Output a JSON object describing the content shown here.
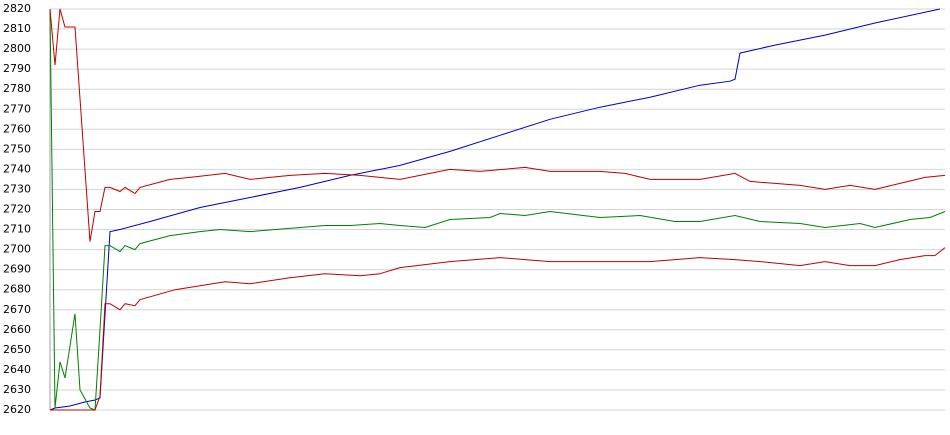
{
  "chart_data": {
    "type": "line",
    "grid": true,
    "xlim": [
      0,
      179
    ],
    "ylim": [
      2620,
      2820
    ],
    "yticks": [
      2620,
      2630,
      2640,
      2650,
      2660,
      2670,
      2680,
      2690,
      2700,
      2710,
      2720,
      2730,
      2740,
      2750,
      2760,
      2770,
      2780,
      2790,
      2800,
      2810,
      2820
    ],
    "series": [
      {
        "color": "#0000c0",
        "x": [
          0,
          1,
          4,
          7,
          9,
          10,
          12,
          14,
          20,
          30,
          40,
          50,
          60,
          66,
          70,
          80,
          90,
          100,
          110,
          120,
          130,
          136,
          137,
          138,
          145,
          155,
          165,
          178
        ],
        "values": [
          2620,
          2621,
          2622,
          2624,
          2625,
          2626,
          2709,
          2710,
          2714,
          2721,
          2726,
          2731,
          2737,
          2740,
          2742,
          2749,
          2757,
          2765,
          2771,
          2776,
          2782,
          2784,
          2785,
          2798,
          2802,
          2807,
          2813,
          2820
        ]
      },
      {
        "color": "#008000",
        "x": [
          0,
          1,
          2,
          3,
          5,
          6,
          8,
          9,
          10,
          11,
          12,
          14,
          15,
          17,
          18,
          24,
          30,
          34,
          40,
          55,
          60,
          66,
          70,
          75,
          80,
          88,
          90,
          95,
          100,
          110,
          118,
          125,
          130,
          137,
          142,
          150,
          155,
          162,
          165,
          172,
          176,
          179
        ],
        "values": [
          2820,
          2621,
          2644,
          2636,
          2668,
          2630,
          2621,
          2620,
          2660,
          2702,
          2702,
          2699,
          2702,
          2700,
          2703,
          2707,
          2709,
          2710,
          2709,
          2712,
          2712,
          2713,
          2712,
          2711,
          2715,
          2716,
          2718,
          2717,
          2719,
          2716,
          2717,
          2714,
          2714,
          2717,
          2714,
          2713,
          2711,
          2713,
          2711,
          2715,
          2716,
          2719
        ]
      },
      {
        "color": "#c00000",
        "x": [
          0,
          1,
          2,
          3,
          5,
          8,
          9,
          10,
          11,
          12,
          14,
          15,
          17,
          18,
          24,
          28,
          35,
          40,
          48,
          55,
          62,
          66,
          70,
          80,
          86,
          95,
          100,
          110,
          115,
          120,
          130,
          137,
          140,
          145,
          150,
          155,
          160,
          165,
          170,
          175,
          179
        ],
        "values": [
          2820,
          2792,
          2820,
          2811,
          2811,
          2704,
          2719,
          2719,
          2731,
          2731,
          2729,
          2731,
          2728,
          2731,
          2735,
          2736,
          2738,
          2735,
          2737,
          2738,
          2737,
          2736,
          2735,
          2740,
          2739,
          2741,
          2739,
          2739,
          2738,
          2735,
          2735,
          2738,
          2734,
          2733,
          2732,
          2730,
          2732,
          2730,
          2733,
          2736,
          2737
        ]
      },
      {
        "color": "#c00000",
        "x": [
          0,
          9,
          10,
          11,
          12,
          14,
          15,
          17,
          18,
          25,
          30,
          35,
          40,
          48,
          55,
          62,
          66,
          70,
          80,
          90,
          95,
          100,
          110,
          120,
          130,
          137,
          142,
          150,
          155,
          160,
          165,
          170,
          175,
          177,
          179
        ],
        "values": [
          2620,
          2620,
          2627,
          2673,
          2673,
          2670,
          2673,
          2672,
          2675,
          2680,
          2682,
          2684,
          2683,
          2686,
          2688,
          2687,
          2688,
          2691,
          2694,
          2696,
          2695,
          2694,
          2694,
          2694,
          2696,
          2695,
          2694,
          2692,
          2694,
          2692,
          2692,
          2695,
          2697,
          2697,
          2701
        ]
      }
    ]
  }
}
